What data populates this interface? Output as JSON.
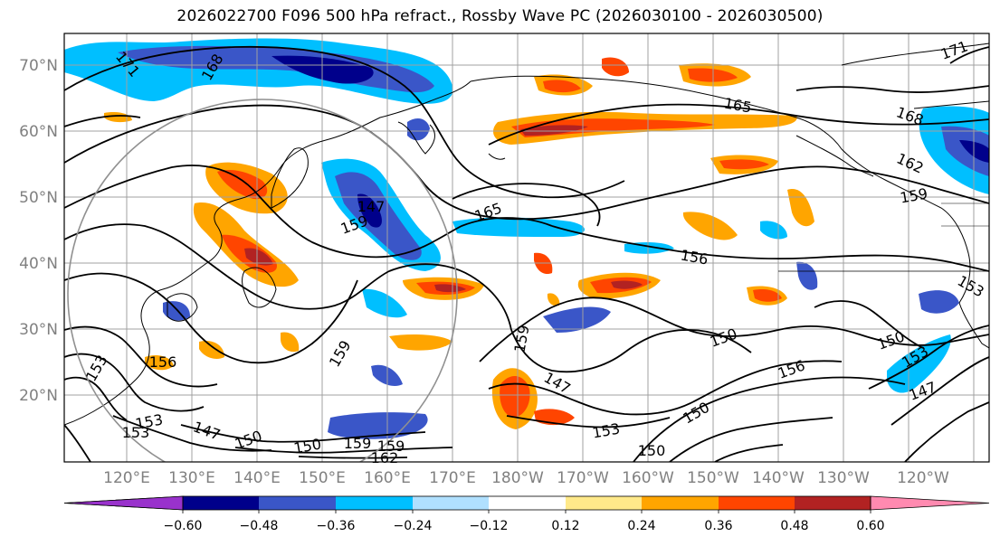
{
  "title": "2026022700 F096 500 hPa refract., Rossby Wave PC (2026030100 - 2026030500)",
  "lat_labels": [
    "70°N",
    "60°N",
    "50°N",
    "40°N",
    "30°N",
    "20°N"
  ],
  "lon_labels": [
    "120°E",
    "130°E",
    "140°E",
    "150°E",
    "160°E",
    "170°E",
    "180°W",
    "170°W",
    "160°W",
    "150°W",
    "140°W",
    "130°W",
    "120°W"
  ],
  "colorbar": {
    "ticks": [
      "−0.60",
      "−0.48",
      "−0.36",
      "−0.24",
      "−0.12",
      "0.12",
      "0.24",
      "0.36",
      "0.48",
      "0.60"
    ],
    "colors": [
      "#9932cc",
      "#00008b",
      "#3a56c8",
      "#00bfff",
      "#b0e0ff",
      "#ffffff",
      "#ffe98a",
      "#ffa500",
      "#ff4500",
      "#b22222",
      "#ff8ab0"
    ]
  },
  "contour_labels": [
    "168",
    "171",
    "171",
    "165",
    "168",
    "162",
    "159",
    "165",
    "159",
    "156",
    "153",
    "159",
    "159",
    "150",
    "147",
    "150",
    "153",
    "147",
    "150",
    "153",
    "156",
    "150",
    "153",
    "147",
    "150",
    "153",
    "156",
    "159",
    "162",
    "159",
    "147",
    "153",
    "150"
  ],
  "colors": {
    "contour": "#000000",
    "grid": "#a0a0a0",
    "coast": "#000000",
    "tick_label": "#808080"
  }
}
